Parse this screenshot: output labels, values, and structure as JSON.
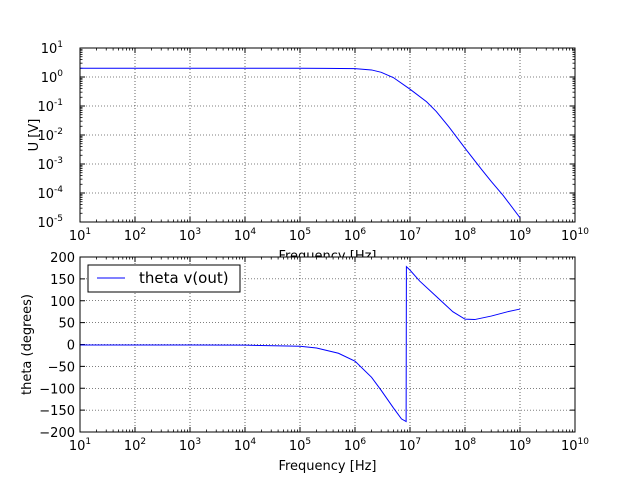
{
  "chart_data": [
    {
      "type": "line",
      "xscale": "log",
      "yscale": "log",
      "xlabel": "Frequency [Hz]",
      "ylabel": "U [V]",
      "xlim": [
        10,
        10000000000
      ],
      "ylim": [
        1e-05,
        10
      ],
      "grid": true,
      "line_color": "#0000ff",
      "xtick_exponents": [
        "1",
        "2",
        "3",
        "4",
        "5",
        "6",
        "7",
        "8",
        "9",
        "10"
      ],
      "ytick_exponents": [
        "-5",
        "-4",
        "-3",
        "-2",
        "-1",
        "0",
        "1"
      ],
      "series": [
        {
          "x": [
            10,
            100,
            1000,
            10000,
            100000,
            300000,
            1000000,
            2000000,
            3000000,
            5000000,
            10000000,
            20000000,
            30000000,
            50000000,
            100000000,
            200000000,
            300000000,
            500000000,
            1000000000
          ],
          "y": [
            2.0,
            2.0,
            2.0,
            2.0,
            2.0,
            1.99,
            1.95,
            1.75,
            1.45,
            0.95,
            0.38,
            0.14,
            0.065,
            0.02,
            0.0035,
            0.00065,
            0.00025,
            8e-05,
            1.4e-05
          ]
        }
      ]
    },
    {
      "type": "line",
      "xscale": "log",
      "xlabel": "Frequency [Hz]",
      "ylabel": "theta (degrees)",
      "xlim": [
        10,
        10000000000
      ],
      "ylim": [
        -200,
        200
      ],
      "grid": true,
      "legend": "top-left",
      "line_color": "#0000ff",
      "xtick_exponents": [
        "1",
        "2",
        "3",
        "4",
        "5",
        "6",
        "7",
        "8",
        "9",
        "10"
      ],
      "ytick_labels": [
        "−200",
        "−150",
        "−100",
        "−50",
        "0",
        "50",
        "100",
        "150",
        "200"
      ],
      "ytick_values": [
        -200,
        -150,
        -100,
        -50,
        0,
        50,
        100,
        150,
        200
      ],
      "series": [
        {
          "name": "theta v(out)",
          "x": [
            10,
            100,
            1000,
            10000,
            100000,
            200000,
            500000,
            1000000,
            2000000,
            3000000,
            5000000,
            7000000,
            8500000,
            8600000,
            10000000,
            15000000,
            30000000,
            60000000,
            100000000,
            150000000,
            300000000,
            600000000,
            1000000000
          ],
          "y": [
            -1,
            -1,
            -1,
            -1.5,
            -4,
            -8,
            -20,
            -38,
            -75,
            -105,
            -145,
            -170,
            -176,
            178,
            170,
            145,
            110,
            75,
            58,
            57,
            65,
            75,
            81
          ]
        }
      ]
    }
  ]
}
